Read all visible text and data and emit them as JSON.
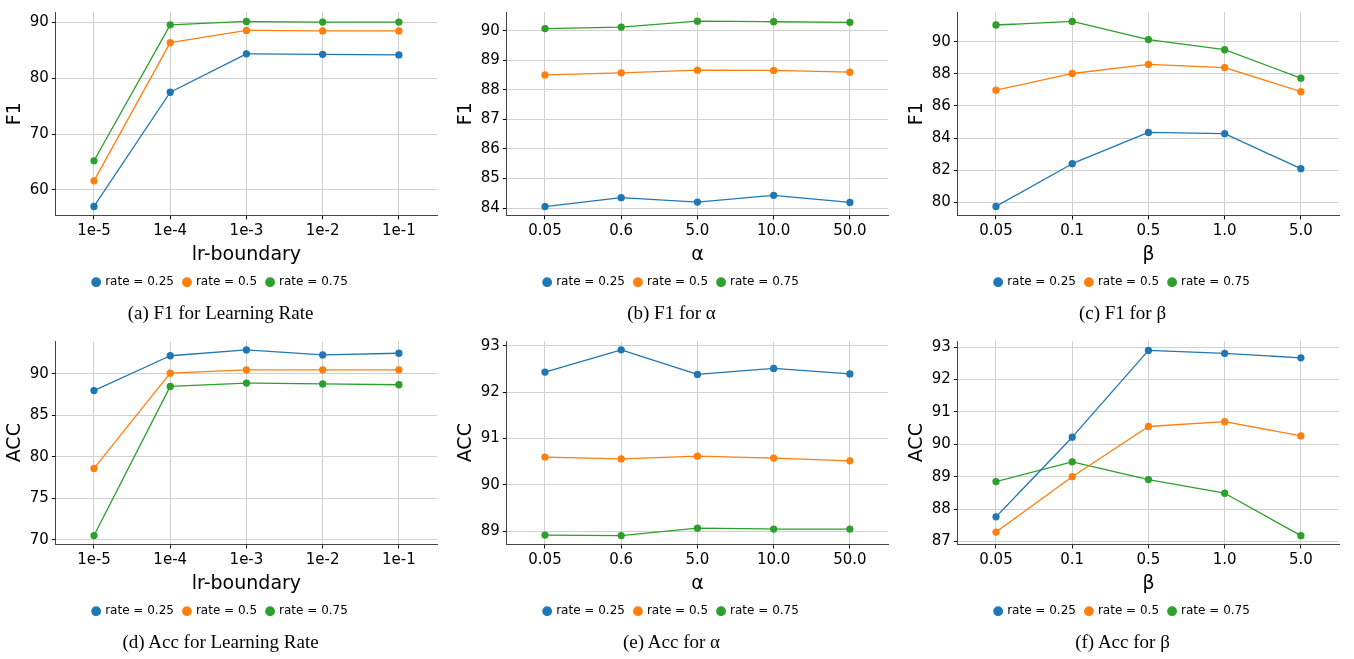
{
  "chart_data": [
    {
      "type": "line",
      "title": "(a) F1 for Learning Rate",
      "xlabel": "lr-boundary",
      "ylabel": "F1",
      "categories": [
        "1e-5",
        "1e-4",
        "1e-3",
        "1e-2",
        "1e-1"
      ],
      "ylim": [
        55.4,
        91.9
      ],
      "yticks": [
        60,
        70,
        80,
        90
      ],
      "grid": true,
      "legend": "bottom",
      "marker": "circle",
      "series": [
        {
          "name": "rate = 0.25",
          "color": "#1f77b4",
          "values": [
            57.0,
            77.5,
            84.4,
            84.3,
            84.2
          ]
        },
        {
          "name": "rate = 0.5",
          "color": "#ff7f0e",
          "values": [
            61.6,
            86.4,
            88.6,
            88.5,
            88.5
          ]
        },
        {
          "name": "rate = 0.75",
          "color": "#2ca02c",
          "values": [
            65.2,
            89.6,
            90.2,
            90.1,
            90.1
          ]
        }
      ]
    },
    {
      "type": "line",
      "title": "(b) F1 for α",
      "xlabel": "α",
      "ylabel": "F1",
      "categories": [
        "0.05",
        "0.6",
        "5.0",
        "10.0",
        "50.0"
      ],
      "ylim": [
        83.75,
        90.64
      ],
      "yticks": [
        84,
        85,
        86,
        87,
        88,
        89,
        90
      ],
      "grid": true,
      "legend": "bottom",
      "marker": "circle",
      "series": [
        {
          "name": "rate = 0.25",
          "color": "#1f77b4",
          "values": [
            84.05,
            84.35,
            84.2,
            84.43,
            84.19
          ]
        },
        {
          "name": "rate = 0.5",
          "color": "#ff7f0e",
          "values": [
            88.51,
            88.58,
            88.67,
            88.66,
            88.6
          ]
        },
        {
          "name": "rate = 0.75",
          "color": "#2ca02c",
          "values": [
            90.08,
            90.13,
            90.33,
            90.31,
            90.29
          ]
        }
      ]
    },
    {
      "type": "line",
      "title": "(c) F1 for β",
      "xlabel": "β",
      "ylabel": "F1",
      "categories": [
        "0.05",
        "0.1",
        "0.5",
        "1.0",
        "5.0"
      ],
      "ylim": [
        79.18,
        91.85
      ],
      "yticks": [
        80,
        82,
        84,
        86,
        88,
        90
      ],
      "grid": true,
      "legend": "bottom",
      "marker": "circle",
      "series": [
        {
          "name": "rate = 0.25",
          "color": "#1f77b4",
          "values": [
            79.74,
            82.4,
            84.35,
            84.27,
            82.09
          ]
        },
        {
          "name": "rate = 0.5",
          "color": "#ff7f0e",
          "values": [
            86.98,
            88.02,
            88.59,
            88.39,
            86.89
          ]
        },
        {
          "name": "rate = 0.75",
          "color": "#2ca02c",
          "values": [
            91.04,
            91.26,
            90.13,
            89.5,
            87.73
          ]
        }
      ]
    },
    {
      "type": "line",
      "title": "(d) Acc for Learning Rate",
      "xlabel": "lr-boundary",
      "ylabel": "ACC",
      "categories": [
        "1e-5",
        "1e-4",
        "1e-3",
        "1e-2",
        "1e-1"
      ],
      "ylim": [
        69.43,
        93.98
      ],
      "yticks": [
        70,
        75,
        80,
        85,
        90
      ],
      "grid": true,
      "legend": "bottom",
      "marker": "circle",
      "series": [
        {
          "name": "rate = 0.25",
          "color": "#1f77b4",
          "values": [
            88.0,
            92.2,
            92.9,
            92.3,
            92.5
          ]
        },
        {
          "name": "rate = 0.5",
          "color": "#ff7f0e",
          "values": [
            78.6,
            90.1,
            90.5,
            90.5,
            90.5
          ]
        },
        {
          "name": "rate = 0.75",
          "color": "#2ca02c",
          "values": [
            70.5,
            88.5,
            88.9,
            88.8,
            88.7
          ]
        }
      ]
    },
    {
      "type": "line",
      "title": "(e) Acc for α",
      "xlabel": "α",
      "ylabel": "ACC",
      "categories": [
        "0.05",
        "0.6",
        "5.0",
        "10.0",
        "50.0"
      ],
      "ylim": [
        88.72,
        93.1
      ],
      "yticks": [
        89,
        90,
        91,
        92,
        93
      ],
      "grid": true,
      "legend": "bottom",
      "marker": "circle",
      "series": [
        {
          "name": "rate = 0.25",
          "color": "#1f77b4",
          "values": [
            92.43,
            92.91,
            92.38,
            92.51,
            92.39
          ]
        },
        {
          "name": "rate = 0.5",
          "color": "#ff7f0e",
          "values": [
            90.6,
            90.56,
            90.62,
            90.58,
            90.52
          ]
        },
        {
          "name": "rate = 0.75",
          "color": "#2ca02c",
          "values": [
            88.92,
            88.91,
            89.07,
            89.05,
            89.05
          ]
        }
      ]
    },
    {
      "type": "line",
      "title": "(f) Acc for β",
      "xlabel": "β",
      "ylabel": "ACC",
      "categories": [
        "0.05",
        "0.1",
        "0.5",
        "1.0",
        "5.0"
      ],
      "ylim": [
        86.91,
        93.19
      ],
      "yticks": [
        87,
        88,
        89,
        90,
        91,
        92,
        93
      ],
      "grid": true,
      "legend": "bottom",
      "marker": "circle",
      "series": [
        {
          "name": "rate = 0.25",
          "color": "#1f77b4",
          "values": [
            87.76,
            90.22,
            92.9,
            92.81,
            92.67
          ]
        },
        {
          "name": "rate = 0.5",
          "color": "#ff7f0e",
          "values": [
            87.29,
            89.0,
            90.55,
            90.7,
            90.26
          ]
        },
        {
          "name": "rate = 0.75",
          "color": "#2ca02c",
          "values": [
            88.85,
            89.46,
            88.91,
            88.49,
            87.18
          ]
        }
      ]
    }
  ]
}
